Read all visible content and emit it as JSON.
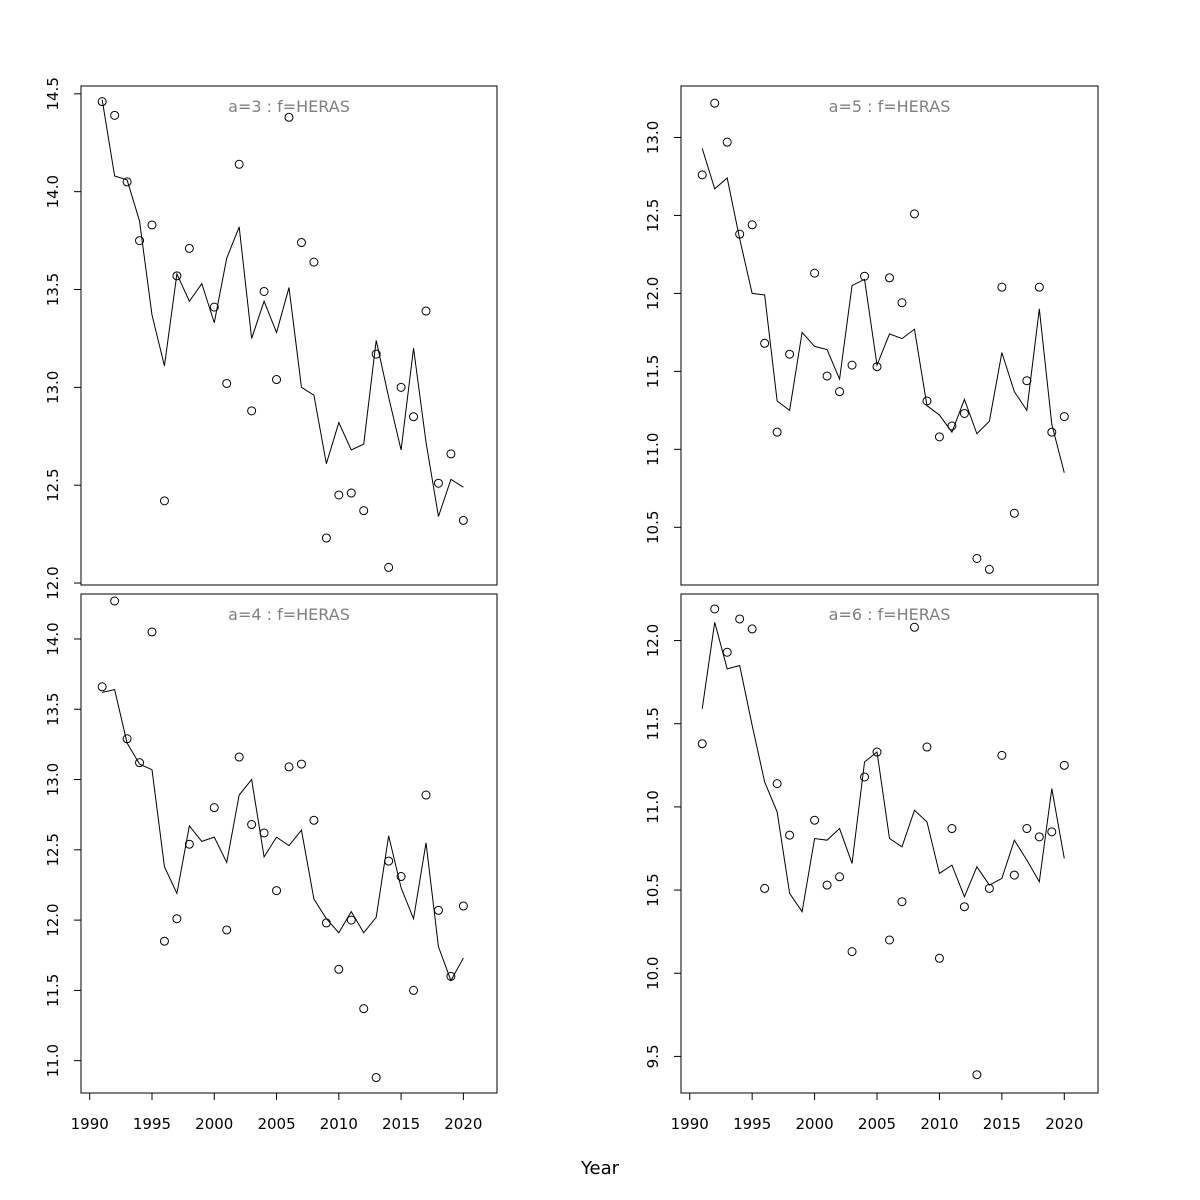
{
  "chart_data": [
    {
      "type": "scatter",
      "title": "a=3  :  f=HERAS",
      "xlabel": "Year",
      "ylabel": "",
      "xlim": [
        1989.3,
        2022.7
      ],
      "ylim": [
        11.99,
        14.54
      ],
      "x_ticks": [
        1990,
        1995,
        2000,
        2005,
        2010,
        2015,
        2020
      ],
      "y_ticks": [
        12.0,
        12.5,
        13.0,
        13.5,
        14.0,
        14.5
      ],
      "x": [
        1991,
        1992,
        1993,
        1994,
        1995,
        1996,
        1997,
        1998,
        1999,
        2000,
        2001,
        2002,
        2003,
        2004,
        2005,
        2006,
        2007,
        2008,
        2009,
        2010,
        2011,
        2012,
        2013,
        2014,
        2015,
        2016,
        2017,
        2018,
        2019,
        2020
      ],
      "series": [
        {
          "name": "",
          "kind": "points",
          "values": [
            14.46,
            14.39,
            14.05,
            13.75,
            13.83,
            12.42,
            13.57,
            13.71,
            null,
            13.41,
            13.02,
            14.14,
            12.88,
            13.49,
            13.04,
            14.38,
            13.74,
            13.64,
            12.23,
            12.45,
            12.46,
            12.37,
            13.17,
            12.08,
            13.0,
            12.85,
            13.39,
            12.51,
            12.66,
            12.32
          ]
        },
        {
          "name": "",
          "kind": "line",
          "values": [
            14.47,
            14.08,
            14.06,
            13.85,
            13.37,
            13.11,
            13.58,
            13.44,
            13.53,
            13.33,
            13.66,
            13.82,
            13.25,
            13.44,
            13.28,
            13.51,
            13.0,
            12.96,
            12.61,
            12.82,
            12.68,
            12.71,
            13.24,
            12.95,
            12.68,
            13.2,
            12.72,
            12.34,
            12.53,
            12.49
          ]
        }
      ],
      "grid": false,
      "legend": "none"
    },
    {
      "type": "scatter",
      "title": "a=5  :  f=HERAS",
      "xlabel": "Year",
      "ylabel": "",
      "xlim": [
        1989.3,
        2022.7
      ],
      "ylim": [
        10.13,
        13.33
      ],
      "x_ticks": [
        1990,
        1995,
        2000,
        2005,
        2010,
        2015,
        2020
      ],
      "y_ticks": [
        10.5,
        11.0,
        11.5,
        12.0,
        12.5,
        13.0
      ],
      "x": [
        1991,
        1992,
        1993,
        1994,
        1995,
        1996,
        1997,
        1998,
        1999,
        2000,
        2001,
        2002,
        2003,
        2004,
        2005,
        2006,
        2007,
        2008,
        2009,
        2010,
        2011,
        2012,
        2013,
        2014,
        2015,
        2016,
        2017,
        2018,
        2019,
        2020
      ],
      "series": [
        {
          "name": "",
          "kind": "points",
          "values": [
            12.76,
            13.22,
            12.97,
            12.38,
            12.44,
            11.68,
            11.11,
            11.61,
            null,
            12.13,
            11.47,
            11.37,
            11.54,
            12.11,
            11.53,
            12.1,
            11.94,
            12.51,
            11.31,
            11.08,
            11.15,
            11.23,
            10.3,
            10.23,
            12.04,
            10.59,
            11.44,
            12.04,
            11.11,
            11.21
          ]
        },
        {
          "name": "",
          "kind": "line",
          "values": [
            12.93,
            12.67,
            12.74,
            12.35,
            12.0,
            11.99,
            11.31,
            11.25,
            11.75,
            11.66,
            11.64,
            11.45,
            12.05,
            12.09,
            11.54,
            11.74,
            11.71,
            11.77,
            11.28,
            11.22,
            11.11,
            11.32,
            11.1,
            11.18,
            11.62,
            11.37,
            11.25,
            11.9,
            11.16,
            10.85
          ]
        }
      ],
      "grid": false,
      "legend": "none"
    },
    {
      "type": "scatter",
      "title": "a=4  :  f=HERAS",
      "xlabel": "Year",
      "ylabel": "",
      "xlim": [
        1989.3,
        2022.7
      ],
      "ylim": [
        10.77,
        14.32
      ],
      "x_ticks": [
        1990,
        1995,
        2000,
        2005,
        2010,
        2015,
        2020
      ],
      "y_ticks": [
        11.0,
        11.5,
        12.0,
        12.5,
        13.0,
        13.5,
        14.0
      ],
      "x": [
        1991,
        1992,
        1993,
        1994,
        1995,
        1996,
        1997,
        1998,
        1999,
        2000,
        2001,
        2002,
        2003,
        2004,
        2005,
        2006,
        2007,
        2008,
        2009,
        2010,
        2011,
        2012,
        2013,
        2014,
        2015,
        2016,
        2017,
        2018,
        2019,
        2020
      ],
      "series": [
        {
          "name": "",
          "kind": "points",
          "values": [
            13.66,
            14.27,
            13.29,
            13.12,
            14.05,
            11.85,
            12.01,
            12.54,
            null,
            12.8,
            11.93,
            13.16,
            12.68,
            12.62,
            12.21,
            13.09,
            13.11,
            12.71,
            11.98,
            11.65,
            12.0,
            11.37,
            10.88,
            12.42,
            12.31,
            11.5,
            12.89,
            12.07,
            11.6,
            12.1
          ]
        },
        {
          "name": "",
          "kind": "line",
          "values": [
            13.62,
            13.64,
            13.26,
            13.11,
            13.07,
            12.38,
            12.19,
            12.67,
            12.56,
            12.59,
            12.41,
            12.89,
            13.0,
            12.45,
            12.59,
            12.53,
            12.64,
            12.15,
            12.01,
            11.91,
            12.06,
            11.91,
            12.02,
            12.6,
            12.23,
            12.01,
            12.55,
            11.81,
            11.57,
            11.73
          ]
        }
      ],
      "grid": false,
      "legend": "none"
    },
    {
      "type": "scatter",
      "title": "a=6  :  f=HERAS",
      "xlabel": "Year",
      "ylabel": "",
      "xlim": [
        1989.3,
        2022.7
      ],
      "ylim": [
        9.28,
        12.28
      ],
      "x_ticks": [
        1990,
        1995,
        2000,
        2005,
        2010,
        2015,
        2020
      ],
      "y_ticks": [
        9.5,
        10.0,
        10.5,
        11.0,
        11.5,
        12.0
      ],
      "x": [
        1991,
        1992,
        1993,
        1994,
        1995,
        1996,
        1997,
        1998,
        1999,
        2000,
        2001,
        2002,
        2003,
        2004,
        2005,
        2006,
        2007,
        2008,
        2009,
        2010,
        2011,
        2012,
        2013,
        2014,
        2015,
        2016,
        2017,
        2018,
        2019,
        2020
      ],
      "series": [
        {
          "name": "",
          "kind": "points",
          "values": [
            11.38,
            12.19,
            11.93,
            12.13,
            12.07,
            10.51,
            11.14,
            10.83,
            null,
            10.92,
            10.53,
            10.58,
            10.13,
            11.18,
            11.33,
            10.2,
            10.43,
            12.08,
            11.36,
            10.09,
            10.87,
            10.4,
            9.39,
            10.51,
            11.31,
            10.59,
            10.87,
            10.82,
            10.85,
            11.25
          ]
        },
        {
          "name": "",
          "kind": "line",
          "values": [
            11.59,
            12.11,
            11.83,
            11.85,
            11.49,
            11.15,
            10.97,
            10.48,
            10.37,
            10.81,
            10.8,
            10.87,
            10.66,
            11.27,
            11.33,
            10.81,
            10.76,
            10.98,
            10.91,
            10.6,
            10.65,
            10.46,
            10.64,
            10.53,
            10.57,
            10.8,
            10.68,
            10.55,
            11.11,
            10.69
          ]
        }
      ],
      "grid": false,
      "legend": "none"
    }
  ],
  "figure": {
    "shared_xlabel": "Year"
  }
}
